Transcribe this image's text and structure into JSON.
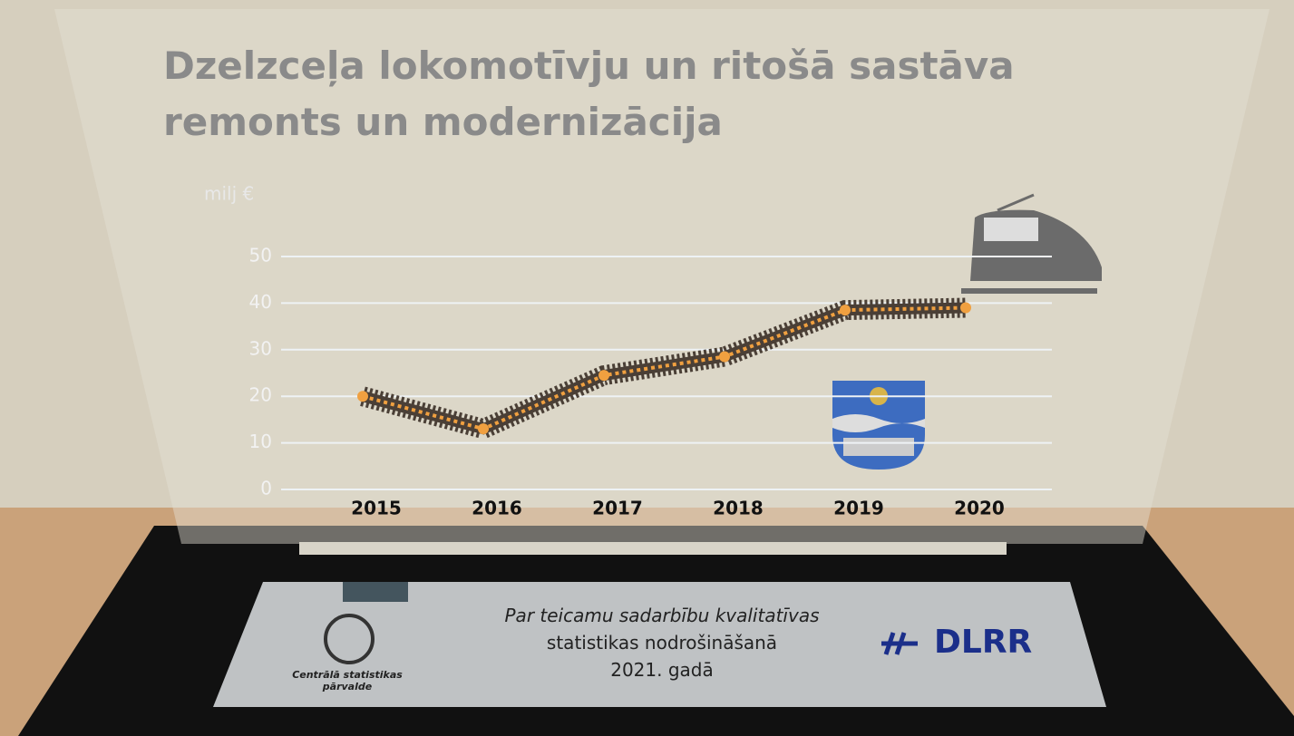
{
  "chart_data": {
    "type": "line",
    "title": "Dzelzceļa lokomotīvju un ritošā sastāva remonts un modernizācija",
    "y_label": "milj €",
    "categories": [
      "2015",
      "2016",
      "2017",
      "2018",
      "2019",
      "2020"
    ],
    "values": [
      20,
      13,
      24.5,
      28.5,
      38.5,
      39
    ],
    "color": "#f0a040",
    "ylim": [
      0,
      50
    ],
    "yticks": [
      0,
      10,
      20,
      30,
      40,
      50
    ],
    "grid": true
  },
  "plaque": {
    "lines": [
      "Par teicamu sadarbību kvalitatīvas",
      "statistikas nodrošināšanā",
      "2021. gadā"
    ],
    "logo_caption": "Centrālā statistikas pārvalde",
    "brand": "DLRR"
  }
}
